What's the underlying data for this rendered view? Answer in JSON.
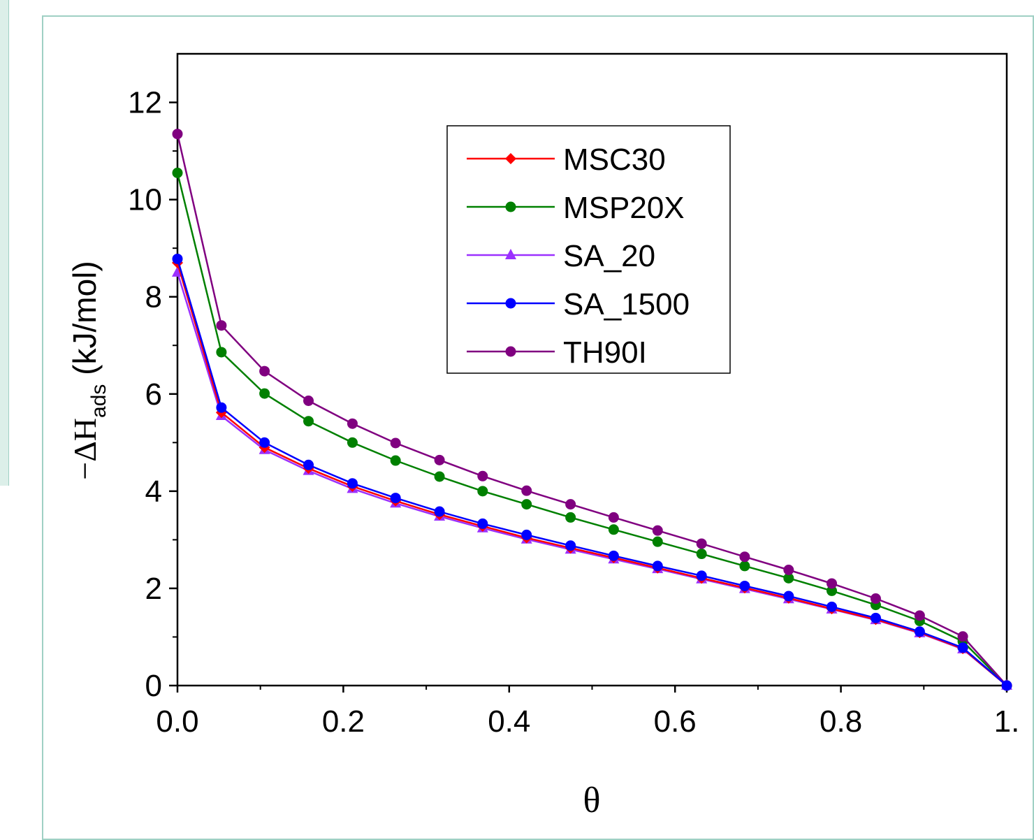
{
  "chart_data": {
    "type": "line",
    "title": "",
    "xlabel": "θ",
    "ylabel": {
      "prefix": "−ΔH",
      "subscript": "ads",
      "suffix": " (kJ/mol)"
    },
    "xlim": [
      0.0,
      1.0
    ],
    "ylim": [
      0,
      13
    ],
    "x_ticks": [
      0.0,
      0.2,
      0.4,
      0.6,
      0.8,
      1.0
    ],
    "x_tick_labels": [
      "0.0",
      "0.2",
      "0.4",
      "0.6",
      "0.8",
      "1."
    ],
    "y_ticks": [
      0,
      2,
      4,
      6,
      8,
      10,
      12
    ],
    "y_tick_labels": [
      "0",
      "2",
      "4",
      "6",
      "8",
      "10",
      "12"
    ],
    "grid": false,
    "legend_position": "top-center",
    "x": [
      0.0,
      0.053,
      0.105,
      0.158,
      0.211,
      0.263,
      0.316,
      0.368,
      0.421,
      0.474,
      0.526,
      0.579,
      0.632,
      0.684,
      0.737,
      0.789,
      0.842,
      0.895,
      0.947,
      1.0
    ],
    "series": [
      {
        "name": "MSC30",
        "color": "#ff0000",
        "marker": "diamond",
        "values": [
          8.7,
          5.62,
          4.9,
          4.47,
          4.1,
          3.8,
          3.52,
          3.28,
          3.04,
          2.83,
          2.63,
          2.42,
          2.21,
          2.01,
          1.8,
          1.58,
          1.36,
          1.09,
          0.76,
          0.0
        ]
      },
      {
        "name": "MSP20X",
        "color": "#008000",
        "marker": "circle",
        "values": [
          10.55,
          6.86,
          6.01,
          5.44,
          5.0,
          4.63,
          4.3,
          4.0,
          3.73,
          3.46,
          3.21,
          2.96,
          2.71,
          2.46,
          2.21,
          1.95,
          1.66,
          1.33,
          0.91,
          0.0
        ]
      },
      {
        "name": "SA_20",
        "color": "#9b30ff",
        "marker": "triangle",
        "values": [
          8.5,
          5.55,
          4.85,
          4.42,
          4.05,
          3.75,
          3.48,
          3.24,
          3.01,
          2.8,
          2.6,
          2.4,
          2.19,
          1.99,
          1.78,
          1.57,
          1.35,
          1.08,
          0.75,
          0.0
        ]
      },
      {
        "name": "SA_1500",
        "color": "#0000ff",
        "marker": "circle",
        "values": [
          8.78,
          5.72,
          5.0,
          4.54,
          4.16,
          3.86,
          3.58,
          3.33,
          3.1,
          2.88,
          2.67,
          2.46,
          2.26,
          2.05,
          1.84,
          1.62,
          1.39,
          1.11,
          0.78,
          0.0
        ]
      },
      {
        "name": "TH90I",
        "color": "#800080",
        "marker": "circle",
        "values": [
          11.35,
          7.41,
          6.47,
          5.86,
          5.39,
          4.99,
          4.64,
          4.31,
          4.01,
          3.73,
          3.46,
          3.19,
          2.92,
          2.65,
          2.38,
          2.1,
          1.79,
          1.44,
          1.01,
          0.0
        ]
      }
    ]
  }
}
